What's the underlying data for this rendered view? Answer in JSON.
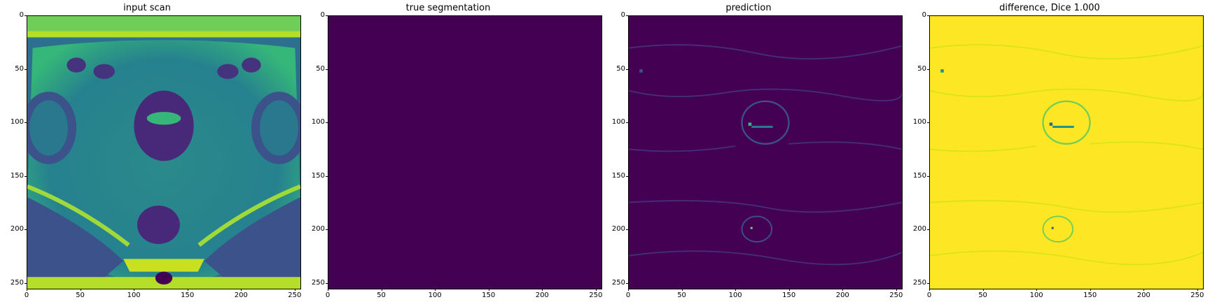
{
  "figure": {
    "panels": [
      {
        "title": "input scan",
        "content": "MRI pelvic scan, viridis colormap"
      },
      {
        "title": "true segmentation",
        "content": "uniform dark purple (empty mask)"
      },
      {
        "title": "prediction",
        "content": "mostly dark purple with faint speckle near center"
      },
      {
        "title": "difference, Dice 1.000",
        "content": "mostly yellow with blue/green speckle"
      }
    ],
    "x_ticks": [
      "0",
      "50",
      "100",
      "150",
      "200",
      "250"
    ],
    "y_ticks": [
      "0",
      "50",
      "100",
      "150",
      "200",
      "250"
    ],
    "axis_range": [
      0,
      256
    ],
    "colors": {
      "viridis_low": "#440154",
      "viridis_mid": "#21918c",
      "viridis_high": "#fde725"
    }
  }
}
